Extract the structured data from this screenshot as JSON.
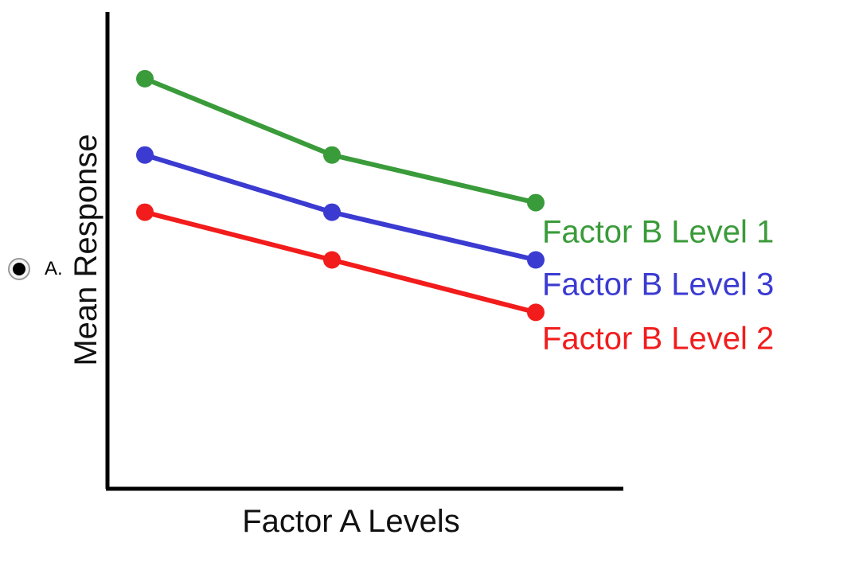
{
  "option": {
    "label": "A.",
    "selected": true
  },
  "chart_data": {
    "type": "line",
    "title": "",
    "xlabel": "Factor A Levels",
    "ylabel": "Mean Response",
    "x": [
      1,
      2,
      3
    ],
    "ylim": [
      0,
      100
    ],
    "grid": false,
    "legend": "labels at line ends, right",
    "series": [
      {
        "name": "Factor B Level 1",
        "color": "#3a9b3a",
        "values": [
          86,
          70,
          60
        ]
      },
      {
        "name": "Factor B Level 3",
        "color": "#3b3bd1",
        "values": [
          70,
          58,
          48
        ]
      },
      {
        "name": "Factor B Level 2",
        "color": "#f21c1c",
        "values": [
          58,
          48,
          37
        ]
      }
    ]
  }
}
